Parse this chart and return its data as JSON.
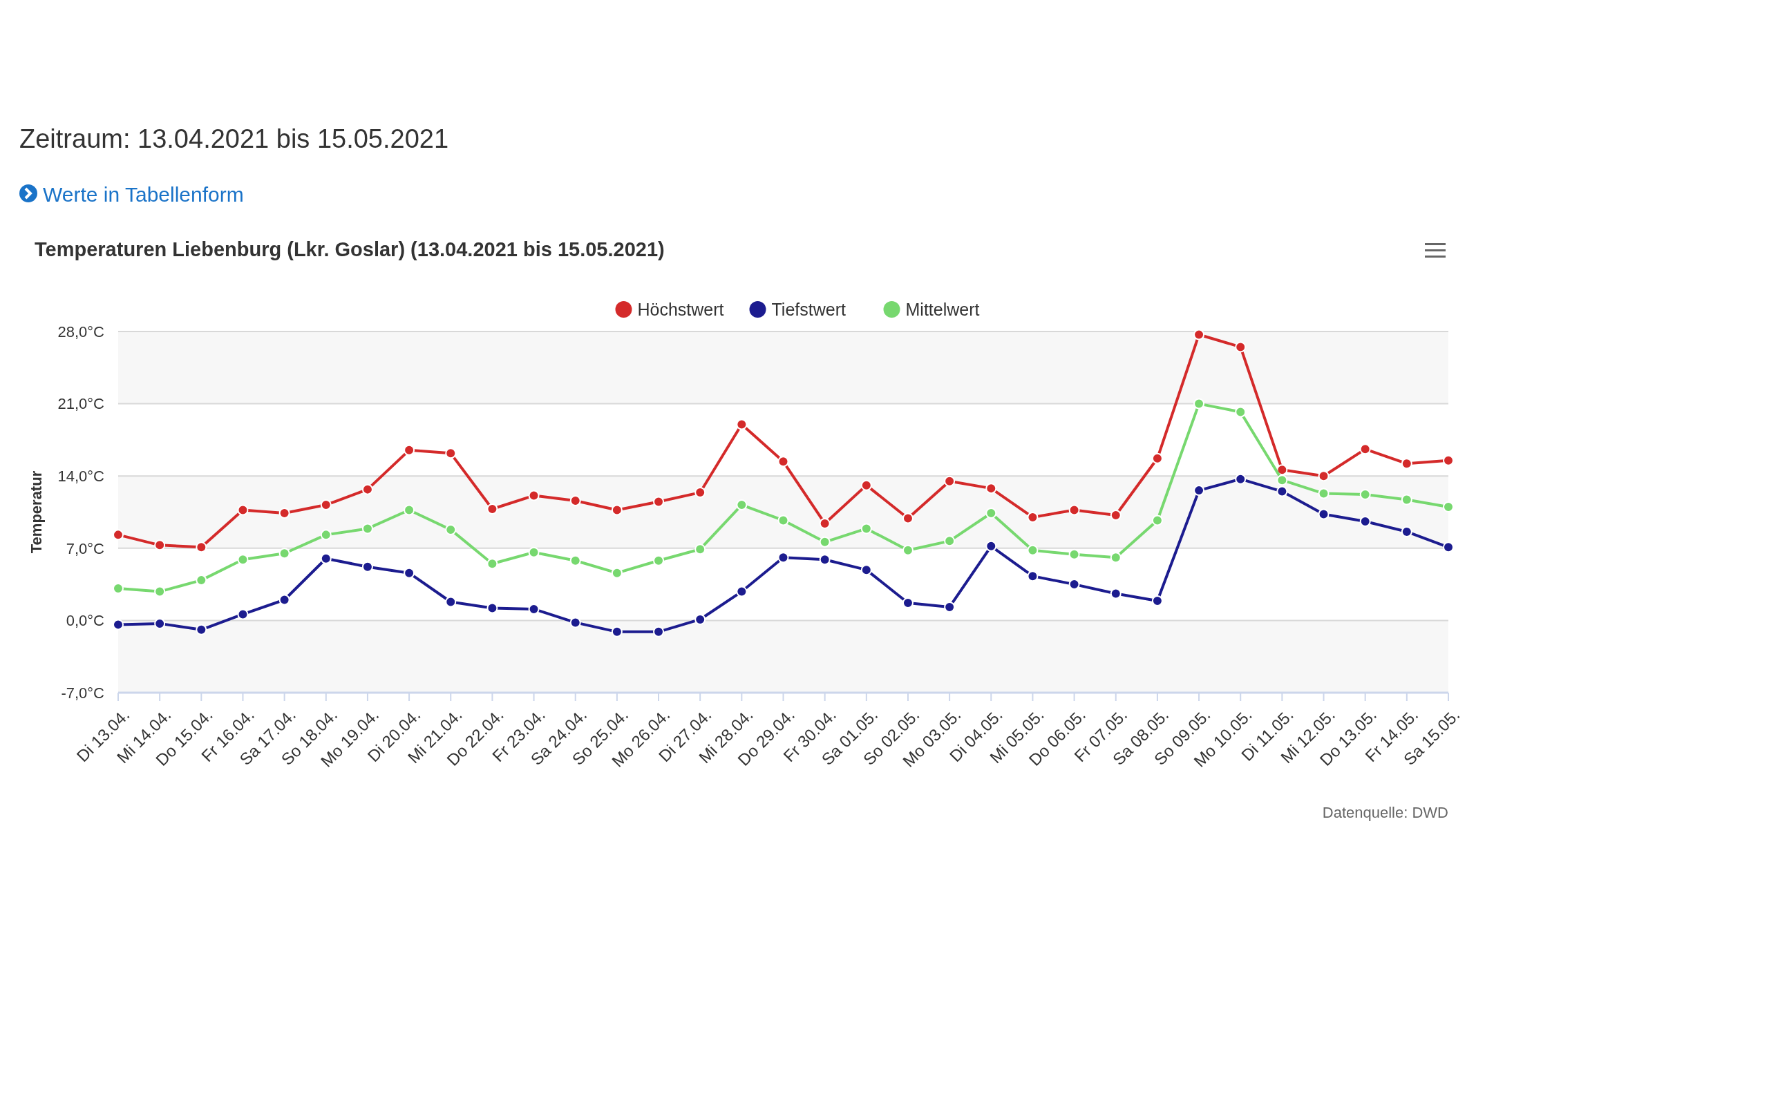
{
  "chart_data": {
    "type": "line",
    "title": "Temperaturen Liebenburg (Lkr. Goslar) (13.04.2021 bis 15.05.2021)",
    "subtitle": "Zeitraum: 13.04.2021 bis 15.05.2021",
    "ylabel": "Temperatur",
    "annotations": [
      "Werte in Tabellenform",
      "Datenquelle: DWD"
    ],
    "categories": [
      "Di 13.04.",
      "Mi 14.04.",
      "Do 15.04.",
      "Fr 16.04.",
      "Sa 17.04.",
      "So 18.04.",
      "Mo 19.04.",
      "Di 20.04.",
      "Mi 21.04.",
      "Do 22.04.",
      "Fr 23.04.",
      "Sa 24.04.",
      "So 25.04.",
      "Mo 26.04.",
      "Di 27.04.",
      "Mi 28.04.",
      "Do 29.04.",
      "Fr 30.04.",
      "Sa 01.05.",
      "So 02.05.",
      "Mo 03.05.",
      "Di 04.05.",
      "Mi 05.05.",
      "Do 06.05.",
      "Fr 07.05.",
      "Sa 08.05.",
      "So 09.05.",
      "Mo 10.05.",
      "Di 11.05.",
      "Mi 12.05.",
      "Do 13.05.",
      "Fr 14.05.",
      "Sa 15.05."
    ],
    "series": [
      {
        "name": "Höchstwert",
        "color": "#d42a2a",
        "values": [
          8.3,
          7.3,
          7.1,
          10.7,
          10.4,
          11.2,
          12.7,
          16.5,
          16.2,
          10.8,
          12.1,
          11.6,
          10.7,
          11.5,
          12.4,
          19.0,
          15.4,
          9.4,
          13.1,
          9.9,
          13.5,
          12.8,
          10.0,
          10.7,
          10.2,
          15.7,
          27.7,
          26.5,
          14.6,
          14.0,
          16.6,
          15.2,
          15.5
        ]
      },
      {
        "name": "Tiefstwert",
        "color": "#1c1c8f",
        "values": [
          -0.4,
          -0.3,
          -0.9,
          0.6,
          2.0,
          6.0,
          5.2,
          4.6,
          1.8,
          1.2,
          1.1,
          -0.2,
          -1.1,
          -1.1,
          0.1,
          2.8,
          6.1,
          5.9,
          4.9,
          1.7,
          1.3,
          7.2,
          4.3,
          3.5,
          2.6,
          1.9,
          12.6,
          13.7,
          12.5,
          10.3,
          9.6,
          8.6,
          7.1
        ]
      },
      {
        "name": "Mittelwert",
        "color": "#77d86f",
        "values": [
          3.1,
          2.8,
          3.9,
          5.9,
          6.5,
          8.3,
          8.9,
          10.7,
          8.8,
          5.5,
          6.6,
          5.8,
          4.6,
          5.8,
          6.9,
          11.2,
          9.7,
          7.6,
          8.9,
          6.8,
          7.7,
          10.4,
          6.8,
          6.4,
          6.1,
          9.7,
          21.0,
          20.2,
          13.6,
          12.3,
          12.2,
          11.7,
          11.0
        ]
      }
    ],
    "ylim": [
      -7,
      28
    ],
    "yticks": [
      {
        "value": -7,
        "label": "-7,0°C"
      },
      {
        "value": 0,
        "label": "0,0°C"
      },
      {
        "value": 7,
        "label": "7,0°C"
      },
      {
        "value": 14,
        "label": "14,0°C"
      },
      {
        "value": 21,
        "label": "21,0°C"
      },
      {
        "value": 28,
        "label": "28,0°C"
      }
    ],
    "bands": [
      {
        "axis": "y",
        "from": -7,
        "to": 0,
        "color": "#f7f7f7"
      },
      {
        "axis": "y",
        "from": 7,
        "to": 14,
        "color": "#f7f7f7"
      },
      {
        "axis": "y",
        "from": 21,
        "to": 28,
        "color": "#f7f7f7"
      }
    ],
    "grid": "y",
    "legend": "top",
    "marker": "circle",
    "line_style": "solid"
  }
}
